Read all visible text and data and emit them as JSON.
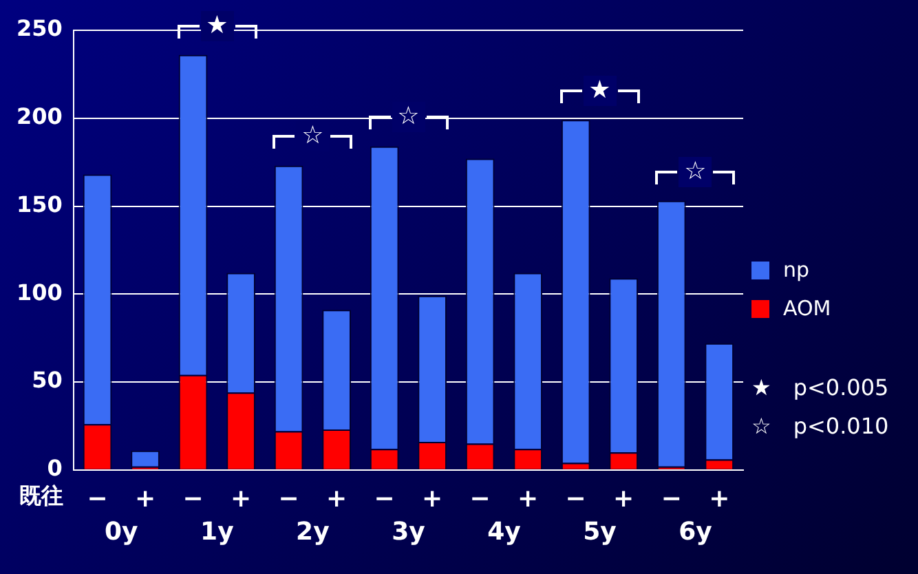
{
  "chart_data": {
    "type": "bar",
    "stacked": true,
    "xlabel": "既往",
    "categories": [
      "−",
      "+",
      "−",
      "+",
      "−",
      "+",
      "−",
      "+",
      "−",
      "+",
      "−",
      "+",
      "−",
      "+"
    ],
    "series": [
      {
        "name": "AOM",
        "color": "#ff0000",
        "values": [
          26,
          2,
          54,
          44,
          22,
          23,
          12,
          16,
          15,
          12,
          4,
          10,
          2,
          6
        ]
      },
      {
        "name": "np",
        "color": "#3a6cf4",
        "values": [
          142,
          9,
          182,
          68,
          151,
          68,
          172,
          83,
          162,
          100,
          195,
          99,
          151,
          66
        ]
      }
    ],
    "ylim": [
      0,
      250
    ],
    "yticks": [
      0,
      50,
      100,
      150,
      200,
      250
    ],
    "grid": "y",
    "legend": "right",
    "annotations": [
      "0y",
      "1y",
      "2y",
      "3y",
      "4y",
      "5y",
      "6y",
      "★　p<0.005",
      "☆　p<0.010",
      "★",
      "☆",
      "☆",
      "★",
      "☆"
    ]
  }
}
